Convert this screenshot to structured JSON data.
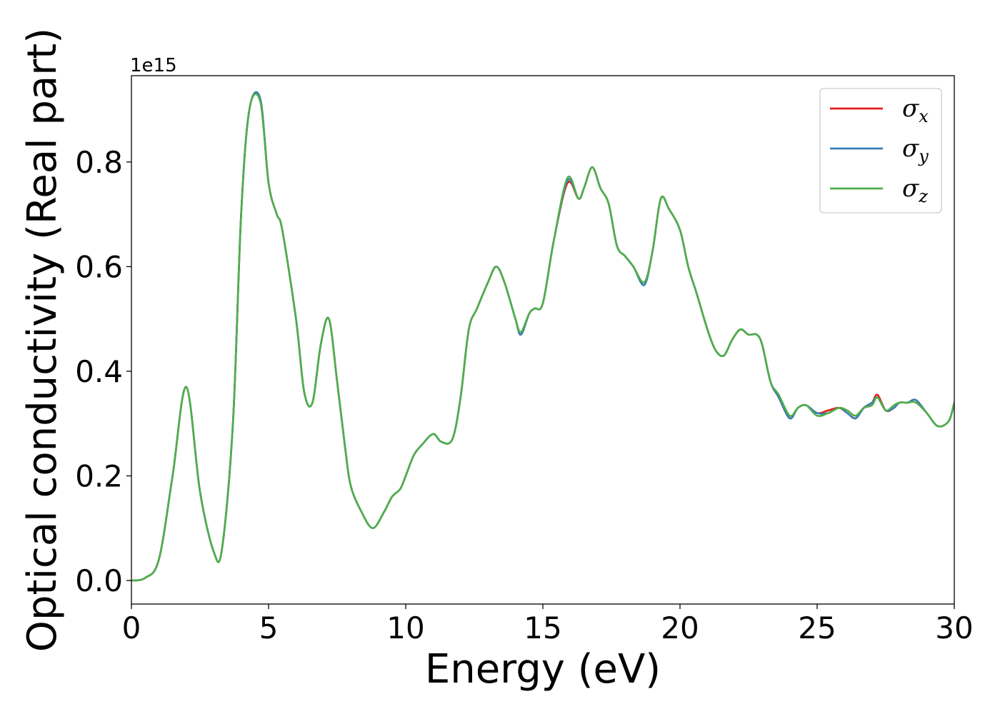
{
  "chart_data": {
    "type": "line",
    "xlabel": "Energy (eV)",
    "ylabel": "Optical conductivity (Real part)",
    "y_offset_label": "1e15",
    "xlim": [
      0,
      30
    ],
    "ylim": [
      -0.045,
      0.965
    ],
    "x_ticks": [
      0,
      5,
      10,
      15,
      20,
      25,
      30
    ],
    "x_tick_labels": [
      "0",
      "5",
      "10",
      "15",
      "20",
      "25",
      "30"
    ],
    "y_ticks": [
      0.0,
      0.2,
      0.4,
      0.6,
      0.8
    ],
    "y_tick_labels": [
      "0.0",
      "0.2",
      "0.4",
      "0.6",
      "0.8"
    ],
    "legend_position": "upper-right",
    "grid": false,
    "x": [
      0,
      0.5,
      1.0,
      1.5,
      2.0,
      2.5,
      3.0,
      3.3,
      3.7,
      4.0,
      4.3,
      4.7,
      5.0,
      5.3,
      5.5,
      6.0,
      6.3,
      6.6,
      6.9,
      7.2,
      7.5,
      7.8,
      8.0,
      8.4,
      8.8,
      9.2,
      9.5,
      9.8,
      10.0,
      10.3,
      10.6,
      11.0,
      11.3,
      11.7,
      12.0,
      12.3,
      12.6,
      13.0,
      13.3,
      13.6,
      14.0,
      14.2,
      14.5,
      14.7,
      15.0,
      15.4,
      15.9,
      16.3,
      16.5,
      16.8,
      17.1,
      17.4,
      17.7,
      18.0,
      18.3,
      18.7,
      19.0,
      19.3,
      19.6,
      20.0,
      20.3,
      20.6,
      21.0,
      21.3,
      21.6,
      21.9,
      22.2,
      22.5,
      22.8,
      23.0,
      23.3,
      23.6,
      24.0,
      24.3,
      24.6,
      25.0,
      25.4,
      25.8,
      26.1,
      26.4,
      26.7,
      27.0,
      27.2,
      27.5,
      27.8,
      28.0,
      28.3,
      28.6,
      29.0,
      29.4,
      29.8,
      30.0
    ],
    "series": [
      {
        "name": "σx",
        "color": "#e41a1c",
        "values": [
          0.0,
          0.005,
          0.04,
          0.2,
          0.37,
          0.17,
          0.055,
          0.06,
          0.3,
          0.7,
          0.9,
          0.92,
          0.76,
          0.7,
          0.67,
          0.5,
          0.36,
          0.34,
          0.45,
          0.5,
          0.38,
          0.25,
          0.18,
          0.13,
          0.1,
          0.13,
          0.16,
          0.175,
          0.2,
          0.24,
          0.26,
          0.28,
          0.265,
          0.27,
          0.35,
          0.48,
          0.52,
          0.57,
          0.6,
          0.57,
          0.5,
          0.47,
          0.51,
          0.52,
          0.53,
          0.65,
          0.76,
          0.73,
          0.75,
          0.79,
          0.75,
          0.72,
          0.64,
          0.62,
          0.6,
          0.57,
          0.63,
          0.73,
          0.71,
          0.67,
          0.6,
          0.55,
          0.48,
          0.44,
          0.43,
          0.46,
          0.48,
          0.47,
          0.47,
          0.45,
          0.38,
          0.35,
          0.31,
          0.33,
          0.335,
          0.32,
          0.325,
          0.33,
          0.32,
          0.31,
          0.33,
          0.34,
          0.355,
          0.325,
          0.33,
          0.34,
          0.34,
          0.345,
          0.32,
          0.295,
          0.305,
          0.34
        ]
      },
      {
        "name": "σy",
        "color": "#377eb8",
        "values": [
          0.0,
          0.005,
          0.04,
          0.2,
          0.37,
          0.17,
          0.055,
          0.06,
          0.3,
          0.7,
          0.9,
          0.92,
          0.76,
          0.7,
          0.67,
          0.5,
          0.36,
          0.34,
          0.45,
          0.5,
          0.38,
          0.25,
          0.18,
          0.13,
          0.1,
          0.13,
          0.16,
          0.175,
          0.2,
          0.24,
          0.26,
          0.28,
          0.265,
          0.27,
          0.35,
          0.48,
          0.52,
          0.57,
          0.6,
          0.57,
          0.5,
          0.47,
          0.51,
          0.52,
          0.53,
          0.65,
          0.765,
          0.73,
          0.75,
          0.79,
          0.75,
          0.72,
          0.64,
          0.62,
          0.6,
          0.565,
          0.63,
          0.73,
          0.71,
          0.67,
          0.6,
          0.55,
          0.48,
          0.44,
          0.43,
          0.46,
          0.48,
          0.47,
          0.47,
          0.45,
          0.38,
          0.35,
          0.31,
          0.33,
          0.335,
          0.32,
          0.32,
          0.33,
          0.32,
          0.31,
          0.33,
          0.34,
          0.35,
          0.325,
          0.33,
          0.34,
          0.34,
          0.345,
          0.32,
          0.295,
          0.305,
          0.34
        ]
      },
      {
        "name": "σz",
        "color": "#4daf4a",
        "values": [
          0.0,
          0.005,
          0.04,
          0.2,
          0.37,
          0.17,
          0.055,
          0.06,
          0.3,
          0.7,
          0.9,
          0.915,
          0.76,
          0.7,
          0.67,
          0.5,
          0.36,
          0.34,
          0.45,
          0.5,
          0.38,
          0.25,
          0.18,
          0.13,
          0.1,
          0.13,
          0.16,
          0.175,
          0.2,
          0.24,
          0.26,
          0.28,
          0.265,
          0.27,
          0.35,
          0.48,
          0.52,
          0.57,
          0.6,
          0.57,
          0.5,
          0.475,
          0.51,
          0.52,
          0.53,
          0.65,
          0.77,
          0.73,
          0.75,
          0.79,
          0.75,
          0.72,
          0.64,
          0.62,
          0.6,
          0.57,
          0.63,
          0.73,
          0.71,
          0.67,
          0.6,
          0.55,
          0.48,
          0.44,
          0.43,
          0.46,
          0.48,
          0.47,
          0.47,
          0.45,
          0.38,
          0.355,
          0.315,
          0.33,
          0.335,
          0.315,
          0.32,
          0.33,
          0.325,
          0.315,
          0.33,
          0.335,
          0.35,
          0.325,
          0.335,
          0.34,
          0.34,
          0.34,
          0.32,
          0.295,
          0.305,
          0.34
        ]
      }
    ]
  }
}
